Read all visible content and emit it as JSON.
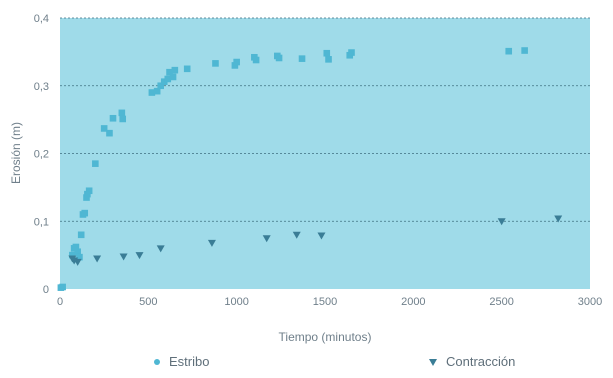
{
  "chart_data": {
    "type": "scatter",
    "title": "",
    "xlabel": "Tiempo (minutos)",
    "ylabel": "Erosión (m)",
    "xlim": [
      0,
      3000
    ],
    "ylim": [
      0,
      0.4
    ],
    "x_ticks": [
      0,
      500,
      1000,
      1500,
      2000,
      2500,
      3000
    ],
    "y_ticks": [
      0,
      0.1,
      0.2,
      0.3,
      0.4
    ],
    "x_tick_labels": [
      "0",
      "500",
      "1000",
      "1500",
      "2000",
      "2500",
      "3000"
    ],
    "y_tick_labels": [
      "0",
      "0,1",
      "0,2",
      "0,3",
      "0,4"
    ],
    "grid": "horizontal dashed",
    "legend_position": "bottom",
    "plot_background": "#9fdbe9",
    "series": [
      {
        "name": "Estribo",
        "marker": "square",
        "color": "#4fb7d3",
        "points": [
          [
            5,
            0.002
          ],
          [
            15,
            0.003
          ],
          [
            70,
            0.05
          ],
          [
            80,
            0.06
          ],
          [
            90,
            0.062
          ],
          [
            100,
            0.055
          ],
          [
            110,
            0.047
          ],
          [
            120,
            0.08
          ],
          [
            130,
            0.11
          ],
          [
            140,
            0.112
          ],
          [
            150,
            0.135
          ],
          [
            155,
            0.14
          ],
          [
            165,
            0.145
          ],
          [
            200,
            0.185
          ],
          [
            250,
            0.237
          ],
          [
            280,
            0.23
          ],
          [
            300,
            0.252
          ],
          [
            350,
            0.26
          ],
          [
            355,
            0.251
          ],
          [
            520,
            0.29
          ],
          [
            550,
            0.292
          ],
          [
            570,
            0.3
          ],
          [
            590,
            0.306
          ],
          [
            610,
            0.31
          ],
          [
            620,
            0.32
          ],
          [
            640,
            0.313
          ],
          [
            650,
            0.323
          ],
          [
            720,
            0.325
          ],
          [
            880,
            0.333
          ],
          [
            990,
            0.33
          ],
          [
            1000,
            0.335
          ],
          [
            1100,
            0.342
          ],
          [
            1110,
            0.338
          ],
          [
            1230,
            0.344
          ],
          [
            1240,
            0.341
          ],
          [
            1370,
            0.34
          ],
          [
            1510,
            0.348
          ],
          [
            1520,
            0.339
          ],
          [
            1640,
            0.345
          ],
          [
            1650,
            0.349
          ],
          [
            2540,
            0.351
          ],
          [
            2630,
            0.352
          ]
        ]
      },
      {
        "name": "Contracción",
        "marker": "triangle-down",
        "color": "#3a7d96",
        "points": [
          [
            70,
            0.045
          ],
          [
            80,
            0.042
          ],
          [
            100,
            0.04
          ],
          [
            210,
            0.045
          ],
          [
            360,
            0.048
          ],
          [
            450,
            0.05
          ],
          [
            570,
            0.06
          ],
          [
            860,
            0.068
          ],
          [
            1170,
            0.075
          ],
          [
            1340,
            0.08
          ],
          [
            1480,
            0.079
          ],
          [
            2500,
            0.1
          ],
          [
            2820,
            0.104
          ]
        ]
      }
    ]
  }
}
